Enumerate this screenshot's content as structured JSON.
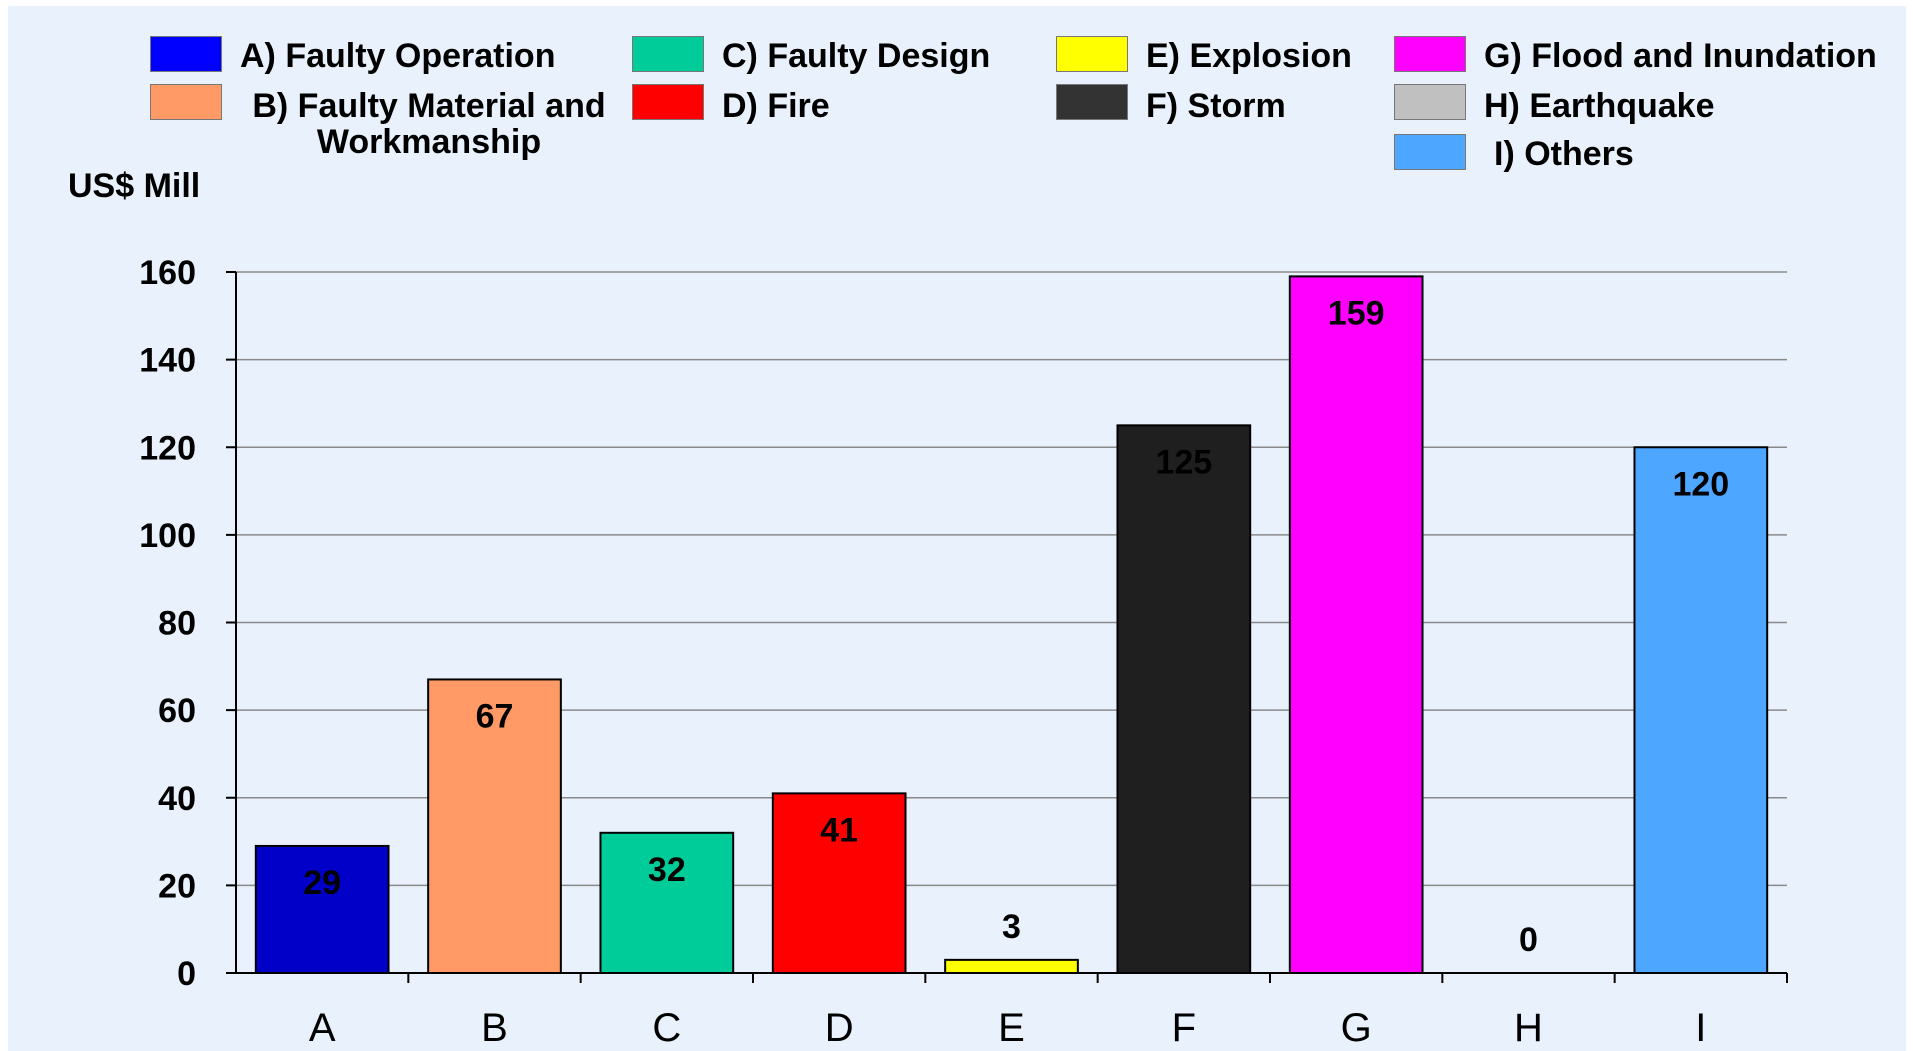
{
  "chart_data": {
    "type": "bar",
    "ylabel": "US$ Mill",
    "xlabel": "",
    "ylim": [
      0,
      160
    ],
    "yticks": [
      0,
      20,
      40,
      60,
      80,
      100,
      120,
      140,
      160
    ],
    "grid": true,
    "legend_position": "top",
    "categories": [
      "A",
      "B",
      "C",
      "D",
      "E",
      "F",
      "G",
      "H",
      "I"
    ],
    "values": [
      29,
      67,
      32,
      41,
      3,
      125,
      159,
      0,
      120
    ],
    "value_labels": [
      "29",
      "67",
      "32",
      "41",
      "3",
      "125",
      "159",
      "0",
      "120"
    ],
    "colors": [
      "#0000c8",
      "#ff9a66",
      "#00cc99",
      "#ff0000",
      "#ffff00",
      "#1f1f1f",
      "#ff00ff",
      "#c0c0c0",
      "#4da6ff"
    ],
    "legend": [
      {
        "label": "A) Faulty Operation",
        "color": "#0000ff"
      },
      {
        "label": "B) Faulty Material and Workmanship",
        "color": "#ff9a66"
      },
      {
        "label": "C) Faulty Design",
        "color": "#00cc99"
      },
      {
        "label": "D) Fire",
        "color": "#ff0000"
      },
      {
        "label": "E) Explosion",
        "color": "#ffff00"
      },
      {
        "label": "F) Storm",
        "color": "#333333"
      },
      {
        "label": "G) Flood and Inundation",
        "color": "#ff00ff"
      },
      {
        "label": "H) Earthquake",
        "color": "#c0c0c0"
      },
      {
        "label": "I) Others",
        "color": "#4da6ff"
      }
    ]
  }
}
